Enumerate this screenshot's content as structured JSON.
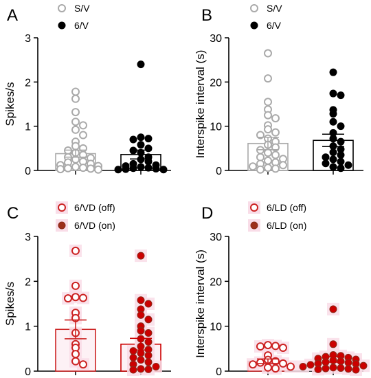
{
  "chart_data": [
    {
      "type": "scatter",
      "panel_letter": "A",
      "ylabel": "Spikes/s",
      "ylim": [
        0,
        3
      ],
      "yticks": [
        "0",
        "1",
        "2",
        "3"
      ],
      "categories": [
        "S/V",
        "6/V"
      ],
      "legend": [
        "S/V",
        "6/V"
      ],
      "series": [
        {
          "name": "S/V",
          "style": "open",
          "color": "#aaaaaa",
          "mean": 0.38,
          "sem": 0.08,
          "values": [
            1.78,
            1.62,
            1.32,
            1.1,
            1.02,
            0.92,
            0.8,
            0.65,
            0.55,
            0.5,
            0.45,
            0.4,
            0.35,
            0.3,
            0.28,
            0.25,
            0.2,
            0.18,
            0.15,
            0.12,
            0.1,
            0.08,
            0.06,
            0.05,
            0.04,
            0.03,
            0.02
          ]
        },
        {
          "name": "6/V",
          "style": "filled",
          "color": "#000000",
          "mean": 0.36,
          "sem": 0.1,
          "values": [
            2.4,
            0.75,
            0.72,
            0.7,
            0.58,
            0.5,
            0.45,
            0.4,
            0.3,
            0.25,
            0.2,
            0.15,
            0.12,
            0.1,
            0.08,
            0.06,
            0.05,
            0.04,
            0.03,
            0.02,
            0.02
          ]
        }
      ]
    },
    {
      "type": "scatter",
      "panel_letter": "B",
      "ylabel": "Interspike interval (s)",
      "ylim": [
        0,
        30
      ],
      "yticks": [
        "0",
        "10",
        "20",
        "30"
      ],
      "categories": [
        "S/V",
        "6/V"
      ],
      "legend": [
        "S/V",
        "6/V"
      ],
      "series": [
        {
          "name": "S/V",
          "style": "open",
          "color": "#aaaaaa",
          "mean": 6.1,
          "sem": 1.4,
          "values": [
            26.5,
            20.8,
            15.5,
            13.8,
            12.5,
            11.8,
            10.2,
            9.3,
            8.6,
            8.0,
            7.2,
            6.5,
            5.8,
            5.2,
            4.6,
            4.0,
            3.5,
            3.0,
            2.6,
            2.2,
            1.8,
            1.5,
            1.2,
            0.9,
            0.6,
            0.4,
            0.2
          ]
        },
        {
          "name": "6/V",
          "style": "filled",
          "color": "#000000",
          "mean": 6.8,
          "sem": 1.4,
          "values": [
            22.2,
            17.4,
            17.0,
            13.7,
            12.8,
            11.0,
            10.0,
            8.5,
            7.2,
            6.5,
            5.5,
            4.8,
            4.1,
            3.5,
            3.0,
            2.5,
            2.0,
            1.6,
            1.2,
            0.8,
            0.5
          ]
        }
      ]
    },
    {
      "type": "scatter",
      "panel_letter": "C",
      "ylabel": "Spikes/s",
      "ylim": [
        0,
        3
      ],
      "yticks": [
        "0",
        "1",
        "2",
        "3"
      ],
      "categories": [
        "6/VD (off)",
        "6/VD (on)"
      ],
      "legend": [
        "6/VD (off)",
        "6/VD (on)"
      ],
      "series": [
        {
          "name": "6/VD (off)",
          "style": "open",
          "color": "#cc2222",
          "mean": 0.93,
          "sem": 0.21,
          "values": [
            2.68,
            1.9,
            1.65,
            1.63,
            1.62,
            1.3,
            1.18,
            0.85,
            0.6,
            0.52,
            0.38,
            0.22,
            0.15
          ]
        },
        {
          "name": "6/VD (on)",
          "style": "filled",
          "color": "#cc0000",
          "mean": 0.6,
          "sem": 0.13,
          "values": [
            2.57,
            1.58,
            1.5,
            1.38,
            1.25,
            1.15,
            1.0,
            0.9,
            0.85,
            0.72,
            0.65,
            0.55,
            0.48,
            0.45,
            0.4,
            0.35,
            0.3,
            0.25,
            0.2,
            0.15,
            0.1,
            0.05,
            0.04,
            0.03
          ]
        }
      ]
    },
    {
      "type": "scatter",
      "panel_letter": "D",
      "ylabel": "Interspike interval (s)",
      "ylim": [
        0,
        30
      ],
      "yticks": [
        "0",
        "10",
        "20",
        "30"
      ],
      "categories": [
        "6/LD (off)",
        "6/LD (on)"
      ],
      "legend": [
        "6/LD (off)",
        "6/LD (on)"
      ],
      "series": [
        {
          "name": "6/LD (off)",
          "style": "open",
          "color": "#cc2222",
          "mean": 2.2,
          "sem": 0.5,
          "values": [
            5.8,
            5.6,
            5.5,
            5.2,
            3.5,
            2.5,
            2.2,
            1.9,
            1.7,
            1.5,
            1.0,
            0.8,
            0.6
          ]
        },
        {
          "name": "6/LD (on)",
          "style": "filled",
          "color": "#cc0000",
          "mean": 2.6,
          "sem": 0.6,
          "values": [
            13.8,
            6.0,
            3.6,
            3.4,
            3.2,
            3.0,
            2.8,
            2.6,
            2.4,
            2.2,
            2.0,
            1.9,
            1.7,
            1.6,
            1.4,
            1.2,
            1.0,
            0.8,
            0.7,
            0.6,
            0.5,
            0.4,
            0.3
          ]
        }
      ]
    }
  ]
}
